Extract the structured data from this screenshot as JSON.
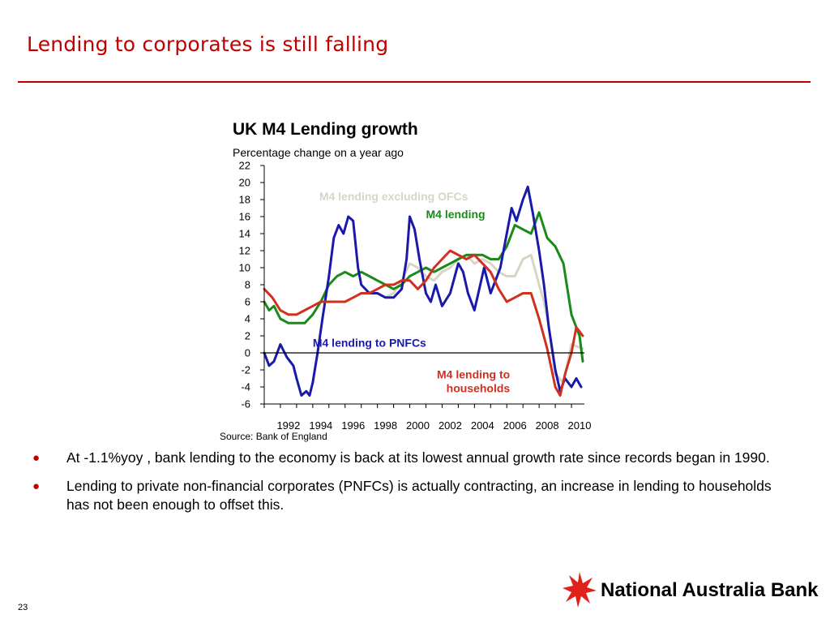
{
  "slide": {
    "title": "Lending to corporates is still falling",
    "page_number": "23",
    "source": "Source: Bank of England",
    "bullets": [
      "At -1.1%yoy , bank lending to the economy is back at its lowest annual growth rate since records began in 1990.",
      "Lending to private non-financial corporates (PNFCs) is actually contracting, an increase in lending to households has not been enough to offset this."
    ],
    "bullet_glyph": "●",
    "logo": {
      "text": "National Australia Bank",
      "icon": "star-icon",
      "color": "#e0201b"
    }
  },
  "chart_data": {
    "type": "line",
    "title": "UK M4 Lending growth",
    "subtitle": "Percentage change on a year ago",
    "xlabel": "",
    "ylabel": "",
    "xlim": [
      1991.0,
      2010.8
    ],
    "ylim": [
      -6,
      22
    ],
    "yticks": [
      22,
      20,
      18,
      16,
      14,
      12,
      10,
      8,
      6,
      4,
      2,
      0,
      -2,
      -4,
      -6
    ],
    "xticks": [
      "1992",
      "1994",
      "1996",
      "1998",
      "2000",
      "2002",
      "2004",
      "2006",
      "2008",
      "2010"
    ],
    "grid": false,
    "zero_line": true,
    "series": [
      {
        "name": "M4 lending excluding OFCs",
        "label_text": "M4 lending excluding OFCs",
        "color": "#d9d4c8",
        "x": [
          1998.5,
          1999.0,
          1999.5,
          2000.0,
          2000.5,
          2001.0,
          2001.5,
          2002.0,
          2002.5,
          2003.0,
          2003.5,
          2004.0,
          2004.5,
          2005.0,
          2005.5,
          2006.0,
          2006.5,
          2007.0,
          2007.5,
          2008.0,
          2008.3,
          2008.6,
          2009.0,
          2009.5,
          2010.0,
          2010.7
        ],
        "y": [
          6.5,
          7.0,
          8.5,
          10.5,
          10.0,
          9.0,
          8.5,
          9.5,
          10.0,
          11.0,
          11.5,
          10.5,
          11.0,
          10.5,
          9.5,
          9.0,
          9.0,
          11.0,
          11.5,
          8.0,
          6.0,
          3.0,
          -2.5,
          -3.5,
          1.0,
          0.5
        ]
      },
      {
        "name": "M4 lending",
        "label_text": "M4 lending",
        "color": "#1a8a1a",
        "x": [
          1991.0,
          1991.3,
          1991.6,
          1992.0,
          1992.5,
          1993.0,
          1993.5,
          1994.0,
          1994.5,
          1995.0,
          1995.5,
          1996.0,
          1996.5,
          1997.0,
          1997.5,
          1998.0,
          1998.5,
          1999.0,
          1999.5,
          2000.0,
          2000.5,
          2001.0,
          2001.5,
          2002.0,
          2002.5,
          2003.0,
          2003.5,
          2004.0,
          2004.5,
          2005.0,
          2005.5,
          2006.0,
          2006.5,
          2007.0,
          2007.5,
          2008.0,
          2008.5,
          2009.0,
          2009.5,
          2010.0,
          2010.5,
          2010.7
        ],
        "y": [
          6.0,
          5.0,
          5.5,
          4.0,
          3.5,
          3.5,
          3.5,
          4.5,
          6.0,
          8.0,
          9.0,
          9.5,
          9.0,
          9.5,
          9.0,
          8.5,
          8.0,
          7.5,
          8.0,
          9.0,
          9.5,
          10.0,
          9.5,
          10.0,
          10.5,
          11.0,
          11.5,
          11.5,
          11.5,
          11.0,
          11.0,
          12.5,
          15.0,
          14.5,
          14.0,
          16.5,
          13.5,
          12.5,
          10.5,
          4.5,
          2.0,
          -1.0
        ]
      },
      {
        "name": "M4 lending to PNFCs",
        "label_text": "M4 lending to PNFCs",
        "color": "#1a1aaa",
        "x": [
          1991.0,
          1991.3,
          1991.6,
          1992.0,
          1992.4,
          1992.8,
          1993.0,
          1993.3,
          1993.6,
          1993.8,
          1994.0,
          1994.3,
          1994.6,
          1995.0,
          1995.3,
          1995.6,
          1995.9,
          1996.2,
          1996.5,
          1996.8,
          1997.0,
          1997.5,
          1998.0,
          1998.5,
          1999.0,
          1999.5,
          1999.8,
          2000.0,
          2000.3,
          2000.6,
          2001.0,
          2001.3,
          2001.6,
          2002.0,
          2002.5,
          2003.0,
          2003.3,
          2003.6,
          2004.0,
          2004.3,
          2004.6,
          2005.0,
          2005.3,
          2005.6,
          2006.0,
          2006.3,
          2006.6,
          2007.0,
          2007.3,
          2007.6,
          2008.0,
          2008.3,
          2008.6,
          2009.0,
          2009.3,
          2009.6,
          2010.0,
          2010.3,
          2010.6
        ],
        "y": [
          0.0,
          -1.5,
          -1.0,
          1.0,
          -0.5,
          -1.5,
          -3.0,
          -5.0,
          -4.5,
          -5.0,
          -3.5,
          0.0,
          4.0,
          9.0,
          13.5,
          15.0,
          14.0,
          16.0,
          15.5,
          10.0,
          8.0,
          7.0,
          7.0,
          6.5,
          6.5,
          7.5,
          11.0,
          16.0,
          14.5,
          11.0,
          7.0,
          6.0,
          8.0,
          5.5,
          7.0,
          10.5,
          9.5,
          7.0,
          5.0,
          7.5,
          10.0,
          7.0,
          8.5,
          10.0,
          14.0,
          17.0,
          15.5,
          18.0,
          19.5,
          16.5,
          12.0,
          8.0,
          3.0,
          -2.0,
          -4.5,
          -3.0,
          -4.0,
          -3.0,
          -4.0
        ]
      },
      {
        "name": "M4 lending to households",
        "label_text": "M4 lending to\nhouseholds",
        "color": "#d03020",
        "x": [
          1991.0,
          1991.5,
          1992.0,
          1992.5,
          1993.0,
          1993.5,
          1994.0,
          1994.5,
          1995.0,
          1995.5,
          1996.0,
          1996.5,
          1997.0,
          1997.5,
          1998.0,
          1998.5,
          1999.0,
          1999.5,
          2000.0,
          2000.5,
          2001.0,
          2001.5,
          2002.0,
          2002.5,
          2003.0,
          2003.5,
          2004.0,
          2004.5,
          2005.0,
          2005.5,
          2006.0,
          2006.5,
          2007.0,
          2007.5,
          2008.0,
          2008.5,
          2009.0,
          2009.3,
          2009.6,
          2010.0,
          2010.3,
          2010.7
        ],
        "y": [
          7.5,
          6.5,
          5.0,
          4.5,
          4.5,
          5.0,
          5.5,
          6.0,
          6.0,
          6.0,
          6.0,
          6.5,
          7.0,
          7.0,
          7.5,
          8.0,
          8.0,
          8.5,
          8.5,
          7.5,
          8.5,
          10.0,
          11.0,
          12.0,
          11.5,
          11.0,
          11.5,
          10.5,
          9.5,
          7.5,
          6.0,
          6.5,
          7.0,
          7.0,
          4.0,
          0.5,
          -4.0,
          -5.0,
          -2.5,
          0.0,
          3.0,
          2.0
        ]
      }
    ]
  }
}
